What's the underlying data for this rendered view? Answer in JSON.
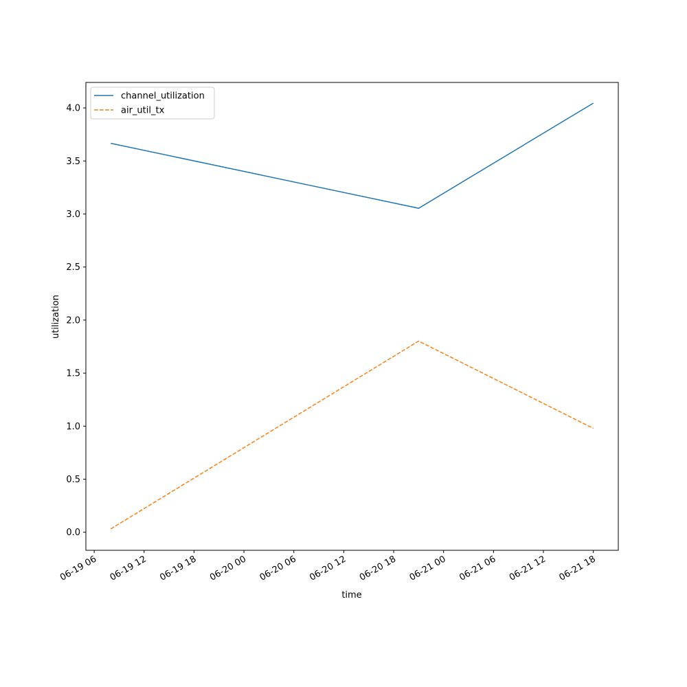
{
  "chart_data": {
    "type": "line",
    "x": [
      "06-19 08",
      "06-20 21",
      "06-21 18"
    ],
    "series": [
      {
        "name": "channel_utilization",
        "color": "#1f77b4",
        "linestyle": "solid",
        "values": [
          3.666,
          3.054,
          4.045
        ]
      },
      {
        "name": "air_util_tx",
        "color": "#ff7f0e",
        "linestyle": "dashed",
        "values": [
          0.032,
          1.802,
          0.979
        ]
      }
    ],
    "xlabel": "time",
    "ylabel": "utilization",
    "xlim": [
      "06-19 05",
      "06-21 21"
    ],
    "xticks": [
      "06-19 06",
      "06-19 12",
      "06-19 18",
      "06-20 00",
      "06-20 06",
      "06-20 12",
      "06-20 18",
      "06-21 00",
      "06-21 06",
      "06-21 12",
      "06-21 18"
    ],
    "ylim": [
      -0.17,
      4.24
    ],
    "yticks": [
      {
        "value": 0,
        "label": "0.0"
      },
      {
        "value": 0.5,
        "label": "0.5"
      },
      {
        "value": 1,
        "label": "1.0"
      },
      {
        "value": 1.5,
        "label": "1.5"
      },
      {
        "value": 2,
        "label": "2.0"
      },
      {
        "value": 2.5,
        "label": "2.5"
      },
      {
        "value": 3,
        "label": "3.0"
      },
      {
        "value": 3.5,
        "label": "3.5"
      },
      {
        "value": 4,
        "label": "4.0"
      }
    ],
    "legend": "upper-left"
  }
}
